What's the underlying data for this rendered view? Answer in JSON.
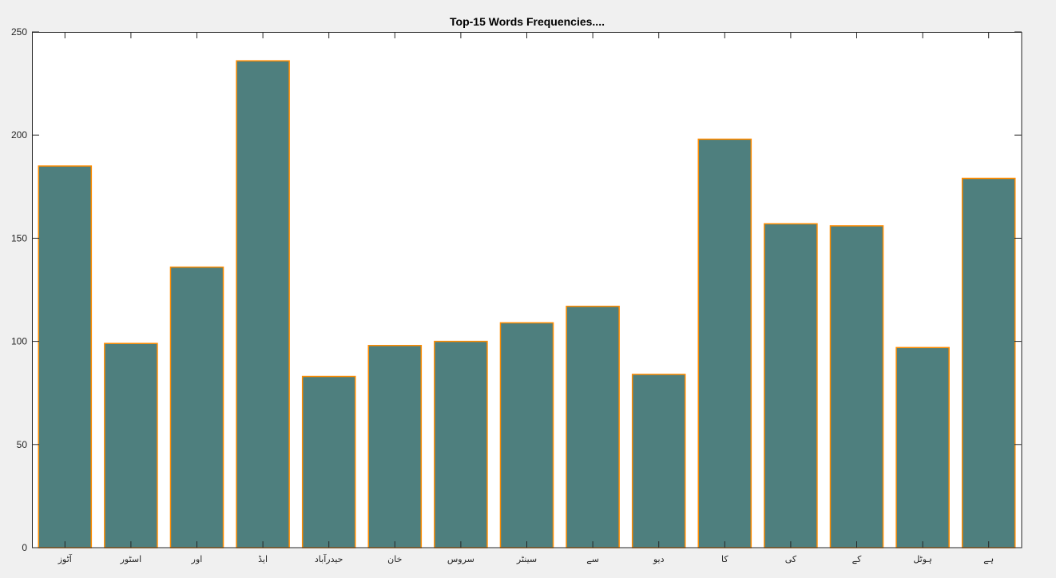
{
  "chart_data": {
    "type": "bar",
    "title": "Top-15 Words Frequencies....",
    "xlabel": "",
    "ylabel": "",
    "categories": [
      "آٹوز",
      "اسٹور",
      "اور",
      "ایڈ",
      "حیدرآباد",
      "خان",
      "سروس",
      "سینٹر",
      "سے",
      "دیو",
      "کا",
      "کی",
      "کے",
      "ہوٹل",
      "ہے"
    ],
    "values": [
      185,
      99,
      136,
      236,
      83,
      98,
      100,
      109,
      117,
      84,
      198,
      157,
      156,
      97,
      179
    ],
    "ylim": [
      0,
      250
    ],
    "yticks": [
      0,
      50,
      100,
      150,
      200,
      250
    ],
    "grid": false,
    "legend": "none",
    "bar_color": "#4e7f7e",
    "edge_color": "#ff8c00"
  }
}
